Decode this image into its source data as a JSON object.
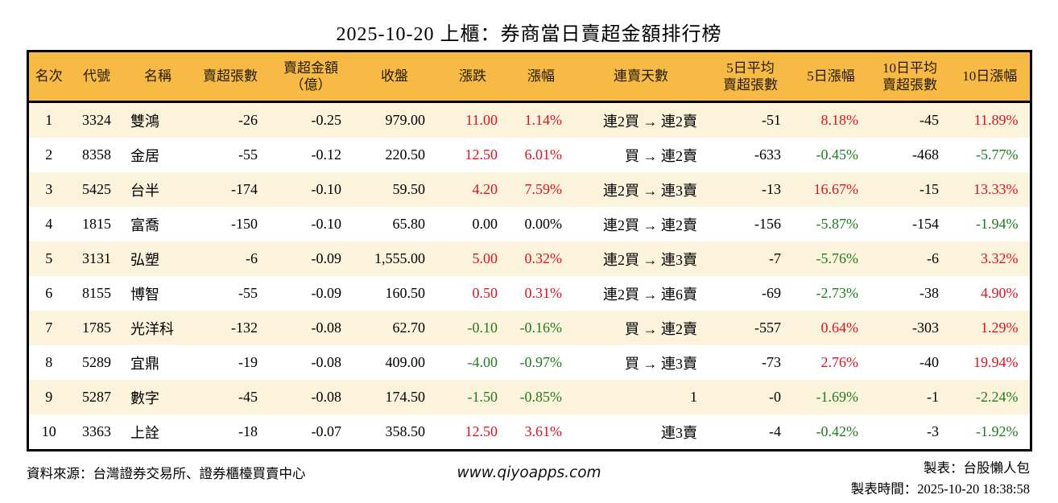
{
  "title": "2025-10-20 上櫃：券商當日賣超金額排行榜",
  "colors": {
    "up": "#dd1420",
    "down": "#1e7d1e",
    "flat": "#000000",
    "header_bg": "#f6ba45",
    "stripe_bg": "#fcf3dc",
    "border": "#000000"
  },
  "table": {
    "headers": [
      "名次",
      "代號",
      "名稱",
      "賣超張數",
      "賣超金額\n（億）",
      "收盤",
      "漲跌",
      "漲幅",
      "連賣天數",
      "5日平均\n賣超張數",
      "5日漲幅",
      "10日平均\n賣超張數",
      "10日漲幅"
    ],
    "rows": [
      {
        "rank": "1",
        "code": "3324",
        "name": "雙鴻",
        "vol": "-26",
        "amt": "-0.25",
        "close": "979.00",
        "chg": "11.00",
        "chg_dir": "up",
        "chg_pct": "1.14%",
        "chg_pct_dir": "up",
        "streak": "連2買 → 連2賣",
        "avg5": "-51",
        "pct5": "8.18%",
        "pct5_dir": "up",
        "avg10": "-45",
        "pct10": "11.89%",
        "pct10_dir": "up"
      },
      {
        "rank": "2",
        "code": "8358",
        "name": "金居",
        "vol": "-55",
        "amt": "-0.12",
        "close": "220.50",
        "chg": "12.50",
        "chg_dir": "up",
        "chg_pct": "6.01%",
        "chg_pct_dir": "up",
        "streak": "買 → 連2賣",
        "avg5": "-633",
        "pct5": "-0.45%",
        "pct5_dir": "down",
        "avg10": "-468",
        "pct10": "-5.77%",
        "pct10_dir": "down"
      },
      {
        "rank": "3",
        "code": "5425",
        "name": "台半",
        "vol": "-174",
        "amt": "-0.10",
        "close": "59.50",
        "chg": "4.20",
        "chg_dir": "up",
        "chg_pct": "7.59%",
        "chg_pct_dir": "up",
        "streak": "連2買 → 連3賣",
        "avg5": "-13",
        "pct5": "16.67%",
        "pct5_dir": "up",
        "avg10": "-15",
        "pct10": "13.33%",
        "pct10_dir": "up"
      },
      {
        "rank": "4",
        "code": "1815",
        "name": "富喬",
        "vol": "-150",
        "amt": "-0.10",
        "close": "65.80",
        "chg": "0.00",
        "chg_dir": "flat",
        "chg_pct": "0.00%",
        "chg_pct_dir": "flat",
        "streak": "連2買 → 連2賣",
        "avg5": "-156",
        "pct5": "-5.87%",
        "pct5_dir": "down",
        "avg10": "-154",
        "pct10": "-1.94%",
        "pct10_dir": "down"
      },
      {
        "rank": "5",
        "code": "3131",
        "name": "弘塑",
        "vol": "-6",
        "amt": "-0.09",
        "close": "1,555.00",
        "chg": "5.00",
        "chg_dir": "up",
        "chg_pct": "0.32%",
        "chg_pct_dir": "up",
        "streak": "連2買 → 連3賣",
        "avg5": "-7",
        "pct5": "-5.76%",
        "pct5_dir": "down",
        "avg10": "-6",
        "pct10": "3.32%",
        "pct10_dir": "up"
      },
      {
        "rank": "6",
        "code": "8155",
        "name": "博智",
        "vol": "-55",
        "amt": "-0.09",
        "close": "160.50",
        "chg": "0.50",
        "chg_dir": "up",
        "chg_pct": "0.31%",
        "chg_pct_dir": "up",
        "streak": "連2買 → 連6賣",
        "avg5": "-69",
        "pct5": "-2.73%",
        "pct5_dir": "down",
        "avg10": "-38",
        "pct10": "4.90%",
        "pct10_dir": "up"
      },
      {
        "rank": "7",
        "code": "1785",
        "name": "光洋科",
        "vol": "-132",
        "amt": "-0.08",
        "close": "62.70",
        "chg": "-0.10",
        "chg_dir": "down",
        "chg_pct": "-0.16%",
        "chg_pct_dir": "down",
        "streak": "買 → 連2賣",
        "avg5": "-557",
        "pct5": "0.64%",
        "pct5_dir": "up",
        "avg10": "-303",
        "pct10": "1.29%",
        "pct10_dir": "up"
      },
      {
        "rank": "8",
        "code": "5289",
        "name": "宜鼎",
        "vol": "-19",
        "amt": "-0.08",
        "close": "409.00",
        "chg": "-4.00",
        "chg_dir": "down",
        "chg_pct": "-0.97%",
        "chg_pct_dir": "down",
        "streak": "買 → 連3賣",
        "avg5": "-73",
        "pct5": "2.76%",
        "pct5_dir": "up",
        "avg10": "-40",
        "pct10": "19.94%",
        "pct10_dir": "up"
      },
      {
        "rank": "9",
        "code": "5287",
        "name": "數字",
        "vol": "-45",
        "amt": "-0.08",
        "close": "174.50",
        "chg": "-1.50",
        "chg_dir": "down",
        "chg_pct": "-0.85%",
        "chg_pct_dir": "down",
        "streak": "1",
        "avg5": "-0",
        "pct5": "-1.69%",
        "pct5_dir": "down",
        "avg10": "-1",
        "pct10": "-2.24%",
        "pct10_dir": "down"
      },
      {
        "rank": "10",
        "code": "3363",
        "name": "上詮",
        "vol": "-18",
        "amt": "-0.07",
        "close": "358.50",
        "chg": "12.50",
        "chg_dir": "up",
        "chg_pct": "3.61%",
        "chg_pct_dir": "up",
        "streak": "連3賣",
        "avg5": "-4",
        "pct5": "-0.42%",
        "pct5_dir": "down",
        "avg10": "-3",
        "pct10": "-1.92%",
        "pct10_dir": "down"
      }
    ]
  },
  "footer": {
    "source": "資料來源：台灣證券交易所、證券櫃檯買賣中心",
    "website": "www.qiyoapps.com",
    "maker": "製表：台股懶人包",
    "time": "製表時間：2025-10-20 18:38:58"
  }
}
